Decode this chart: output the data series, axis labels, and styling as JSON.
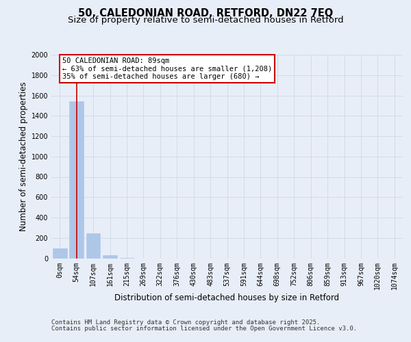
{
  "title_line1": "50, CALEDONIAN ROAD, RETFORD, DN22 7EQ",
  "title_line2": "Size of property relative to semi-detached houses in Retford",
  "xlabel": "Distribution of semi-detached houses by size in Retford",
  "ylabel": "Number of semi-detached properties",
  "bar_labels": [
    "0sqm",
    "54sqm",
    "107sqm",
    "161sqm",
    "215sqm",
    "269sqm",
    "322sqm",
    "376sqm",
    "430sqm",
    "483sqm",
    "537sqm",
    "591sqm",
    "644sqm",
    "698sqm",
    "752sqm",
    "806sqm",
    "859sqm",
    "913sqm",
    "967sqm",
    "1020sqm",
    "1074sqm"
  ],
  "bar_values": [
    95,
    1545,
    248,
    33,
    2,
    0,
    0,
    0,
    0,
    0,
    0,
    0,
    0,
    0,
    0,
    0,
    0,
    0,
    0,
    0,
    0
  ],
  "bar_color": "#aec6e8",
  "bar_edge_color": "#aec6e8",
  "subject_bin_index": 1,
  "annotation_text": "50 CALEDONIAN ROAD: 89sqm\n← 63% of semi-detached houses are smaller (1,208)\n35% of semi-detached houses are larger (680) →",
  "annotation_box_color": "#ffffff",
  "annotation_box_edge_color": "#cc0000",
  "vline_color": "#cc0000",
  "ylim": [
    0,
    2000
  ],
  "yticks": [
    0,
    200,
    400,
    600,
    800,
    1000,
    1200,
    1400,
    1600,
    1800,
    2000
  ],
  "grid_color": "#d0d8e8",
  "background_color": "#e8eef8",
  "plot_bg_color": "#e8eef8",
  "footer_line1": "Contains HM Land Registry data © Crown copyright and database right 2025.",
  "footer_line2": "Contains public sector information licensed under the Open Government Licence v3.0.",
  "title_fontsize": 10.5,
  "subtitle_fontsize": 9.5,
  "axis_label_fontsize": 8.5,
  "tick_fontsize": 7,
  "annotation_fontsize": 7.5,
  "footer_fontsize": 6.5
}
